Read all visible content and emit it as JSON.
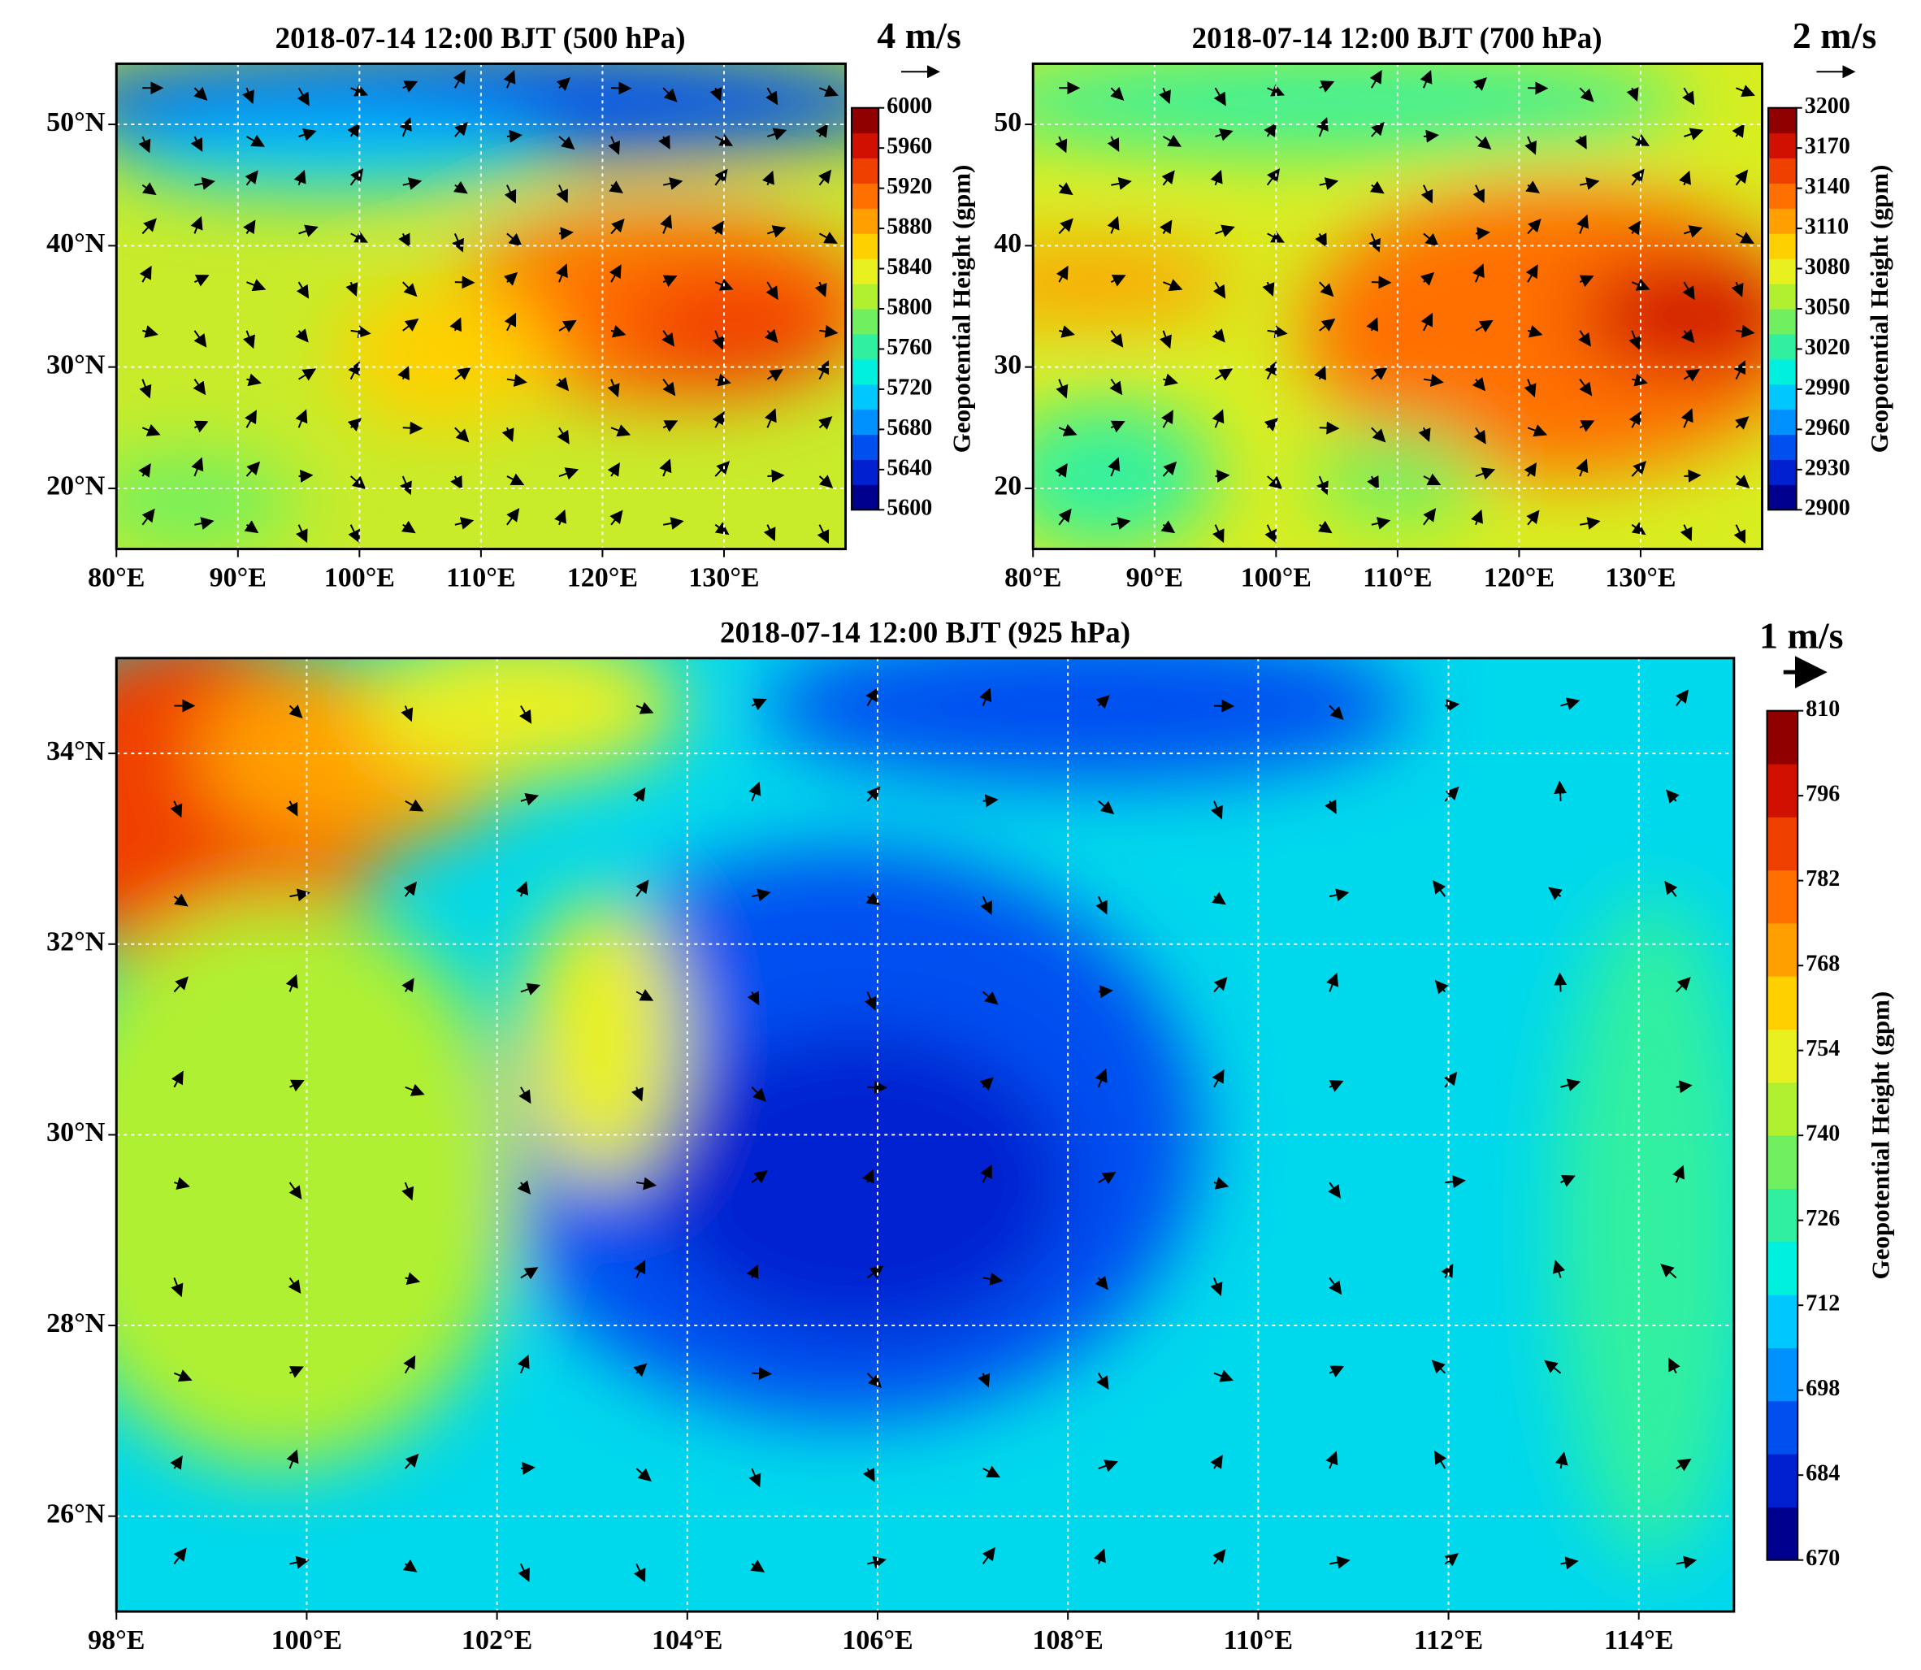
{
  "chart_data": [
    {
      "type": "map",
      "title": "2018-07-14 12:00 BJT (500 hPa)",
      "reference_vector": "4 m/s",
      "xlim": [
        80,
        140
      ],
      "ylim": [
        15,
        55
      ],
      "xticks": [
        {
          "value": 80,
          "label": "80°E"
        },
        {
          "value": 90,
          "label": "90°E"
        },
        {
          "value": 100,
          "label": "100°E"
        },
        {
          "value": 110,
          "label": "110°E"
        },
        {
          "value": 120,
          "label": "120°E"
        },
        {
          "value": 130,
          "label": "130°E"
        }
      ],
      "yticks": [
        {
          "value": 20,
          "label": "20°N"
        },
        {
          "value": 30,
          "label": "30°N"
        },
        {
          "value": 40,
          "label": "40°N"
        },
        {
          "value": 50,
          "label": "50°N"
        }
      ],
      "grid": true,
      "colorbar": {
        "label": "Geopotential Height (gpm)",
        "lim": [
          5600,
          6000
        ],
        "ticks": [
          5600,
          5640,
          5680,
          5720,
          5760,
          5800,
          5840,
          5880,
          5920,
          5960,
          6000
        ],
        "colormap": [
          "#00008f",
          "#0020d0",
          "#0050f0",
          "#0090ff",
          "#00c8ff",
          "#00f0e0",
          "#30f0a0",
          "#70f060",
          "#b0f030",
          "#e8f020",
          "#ffd000",
          "#ffa000",
          "#ff7000",
          "#f04000",
          "#d01000",
          "#900000"
        ]
      }
    },
    {
      "type": "map",
      "title": "2018-07-14 12:00 BJT (700 hPa)",
      "reference_vector": "2 m/s",
      "xlim": [
        80,
        140
      ],
      "ylim": [
        15,
        55
      ],
      "xticks": [
        {
          "value": 80,
          "label": "80°E"
        },
        {
          "value": 90,
          "label": "90°E"
        },
        {
          "value": 100,
          "label": "100°E"
        },
        {
          "value": 110,
          "label": "110°E"
        },
        {
          "value": 120,
          "label": "120°E"
        },
        {
          "value": 130,
          "label": "130°E"
        }
      ],
      "yticks": [
        20,
        30,
        40,
        50
      ],
      "grid": true,
      "colorbar": {
        "label": "Geopotential Height (gpm)",
        "lim": [
          2900,
          3200
        ],
        "ticks": [
          2900,
          2930,
          2960,
          2990,
          3020,
          3050,
          3080,
          3110,
          3140,
          3170,
          3200
        ],
        "colormap": [
          "#00008f",
          "#0020d0",
          "#0050f0",
          "#0090ff",
          "#00c8ff",
          "#00f0e0",
          "#30f0a0",
          "#70f060",
          "#b0f030",
          "#e8f020",
          "#ffd000",
          "#ffa000",
          "#ff7000",
          "#f04000",
          "#d01000",
          "#900000"
        ]
      }
    },
    {
      "type": "map",
      "title": "2018-07-14 12:00 BJT (925 hPa)",
      "reference_vector": "1 m/s",
      "xlim": [
        98,
        115
      ],
      "ylim": [
        25,
        35
      ],
      "xticks": [
        {
          "value": 98,
          "label": "98°E"
        },
        {
          "value": 100,
          "label": "100°E"
        },
        {
          "value": 102,
          "label": "102°E"
        },
        {
          "value": 104,
          "label": "104°E"
        },
        {
          "value": 106,
          "label": "106°E"
        },
        {
          "value": 108,
          "label": "108°E"
        },
        {
          "value": 110,
          "label": "110°E"
        },
        {
          "value": 112,
          "label": "112°E"
        },
        {
          "value": 114,
          "label": "114°E"
        }
      ],
      "yticks": [
        {
          "value": 26,
          "label": "26°N"
        },
        {
          "value": 28,
          "label": "28°N"
        },
        {
          "value": 30,
          "label": "30°N"
        },
        {
          "value": 32,
          "label": "32°N"
        },
        {
          "value": 34,
          "label": "34°N"
        }
      ],
      "grid": true,
      "colorbar": {
        "label": "Geopotential Height (gpm)",
        "lim": [
          670,
          810
        ],
        "ticks": [
          670,
          684,
          698,
          712,
          726,
          740,
          754,
          768,
          782,
          796,
          810
        ],
        "colormap": [
          "#00008f",
          "#0020d0",
          "#0050f0",
          "#0090ff",
          "#00c8ff",
          "#00f0e0",
          "#30f0a0",
          "#70f060",
          "#b0f030",
          "#e8f020",
          "#ffd000",
          "#ffa000",
          "#ff7000",
          "#f04000",
          "#d01000",
          "#900000"
        ]
      }
    }
  ]
}
